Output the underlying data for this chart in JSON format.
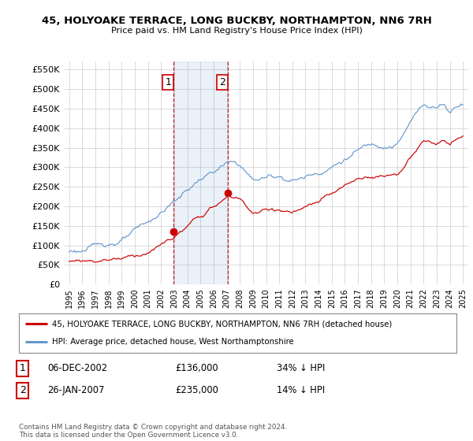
{
  "title": "45, HOLYOAKE TERRACE, LONG BUCKBY, NORTHAMPTON, NN6 7RH",
  "subtitle": "Price paid vs. HM Land Registry's House Price Index (HPI)",
  "ylabel_values": [
    "£0",
    "£50K",
    "£100K",
    "£150K",
    "£200K",
    "£250K",
    "£300K",
    "£350K",
    "£400K",
    "£450K",
    "£500K",
    "£550K"
  ],
  "ylim": [
    0,
    570000
  ],
  "yticks": [
    0,
    50000,
    100000,
    150000,
    200000,
    250000,
    300000,
    350000,
    400000,
    450000,
    500000,
    550000
  ],
  "legend_line1": "45, HOLYOAKE TERRACE, LONG BUCKBY, NORTHAMPTON, NN6 7RH (detached house)",
  "legend_line2": "HPI: Average price, detached house, West Northamptonshire",
  "table_row1": [
    "1",
    "06-DEC-2002",
    "£136,000",
    "34% ↓ HPI"
  ],
  "table_row2": [
    "2",
    "26-JAN-2007",
    "£235,000",
    "14% ↓ HPI"
  ],
  "footnote": "Contains HM Land Registry data © Crown copyright and database right 2024.\nThis data is licensed under the Open Government Licence v3.0.",
  "red_color": "#cc0000",
  "blue_color": "#6699cc",
  "sale1_year": 2002.92,
  "sale1_price": 136000,
  "sale2_year": 2007.07,
  "sale2_price": 235000,
  "background_color": "#ffffff",
  "grid_color": "#cccccc"
}
